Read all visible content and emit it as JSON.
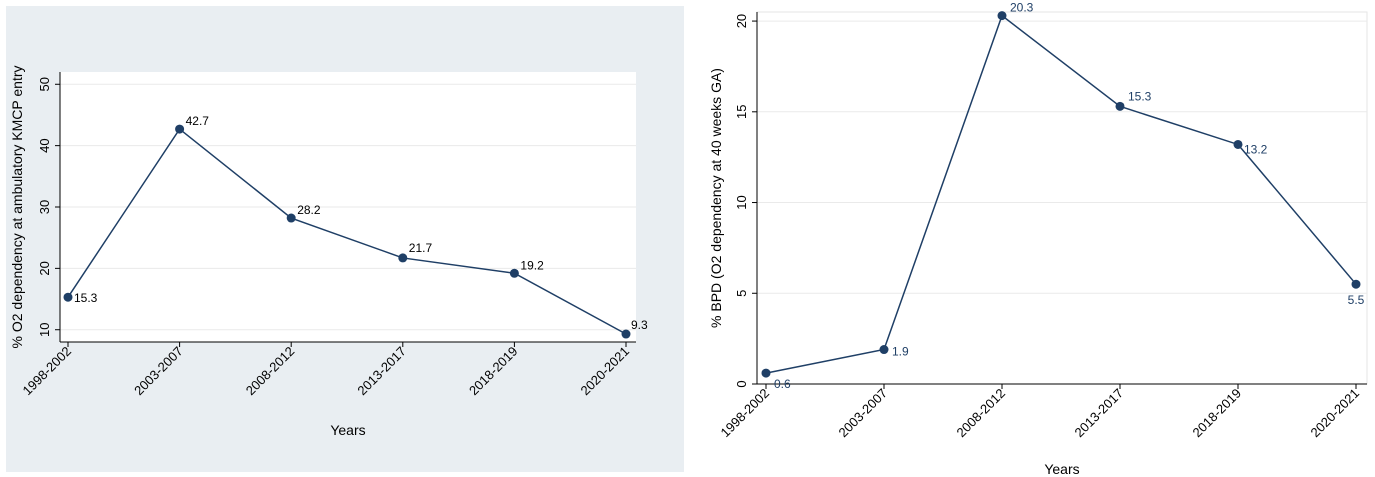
{
  "chart_data": [
    {
      "type": "line",
      "categories": [
        "1998-2002",
        "2003-2007",
        "2008-2012",
        "2013-2017",
        "2018-2019",
        "2020-2021"
      ],
      "series": [
        {
          "values": [
            15.3,
            42.7,
            28.2,
            21.7,
            19.2,
            9.3
          ],
          "labels": [
            "15.3",
            "42.7",
            "28.2",
            "21.7",
            "19.2",
            "9.3"
          ]
        }
      ],
      "xlabel": "Years",
      "ylabel": "% O2 dependency at ambulatory KMCP entry",
      "ylim": [
        8,
        52
      ],
      "yticks": [
        10,
        20,
        30,
        40,
        50
      ],
      "ytick_labels": [
        "10",
        "20",
        "30",
        "40",
        "50"
      ],
      "grid": true,
      "colors": {
        "line": "#1f3f66",
        "marker": "#1f3f66",
        "labels": "#000000",
        "outer_bg": "#e9eef2",
        "plot_bg": "#ffffff"
      }
    },
    {
      "type": "line",
      "categories": [
        "1998-2002",
        "2003-2007",
        "2008-2012",
        "2013-2017",
        "2018-2019",
        "2020-2021"
      ],
      "series": [
        {
          "values": [
            0.6,
            1.9,
            20.3,
            15.3,
            13.2,
            5.5
          ],
          "labels": [
            "0.6",
            "1.9",
            "20.3",
            "15.3",
            "13.2",
            "5.5"
          ]
        }
      ],
      "xlabel": "Years",
      "ylabel": "% BPD (O2 dependency at 40 weeks GA)",
      "ylim": [
        0,
        20.5
      ],
      "yticks": [
        0,
        5,
        10,
        15,
        20
      ],
      "ytick_labels": [
        "0",
        "5",
        "10",
        "15",
        "20"
      ],
      "grid": true,
      "colors": {
        "line": "#1f3f66",
        "marker": "#1f3f66",
        "labels": "#1f3f66",
        "outer_bg": "#ffffff",
        "plot_bg": "#ffffff"
      }
    }
  ]
}
